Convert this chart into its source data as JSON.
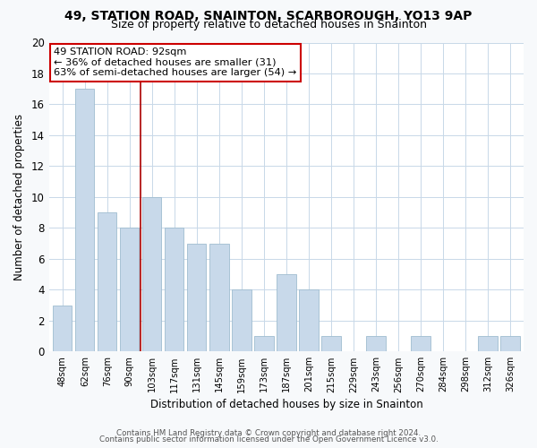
{
  "title": "49, STATION ROAD, SNAINTON, SCARBOROUGH, YO13 9AP",
  "subtitle": "Size of property relative to detached houses in Snainton",
  "xlabel": "Distribution of detached houses by size in Snainton",
  "ylabel": "Number of detached properties",
  "bar_labels": [
    "48sqm",
    "62sqm",
    "76sqm",
    "90sqm",
    "103sqm",
    "117sqm",
    "131sqm",
    "145sqm",
    "159sqm",
    "173sqm",
    "187sqm",
    "201sqm",
    "215sqm",
    "229sqm",
    "243sqm",
    "256sqm",
    "270sqm",
    "284sqm",
    "298sqm",
    "312sqm",
    "326sqm"
  ],
  "bar_values": [
    3,
    17,
    9,
    8,
    10,
    8,
    7,
    7,
    4,
    1,
    5,
    4,
    1,
    0,
    1,
    0,
    1,
    0,
    0,
    1,
    1
  ],
  "bar_color": "#c8d9ea",
  "bar_edge_color": "#a0bdd0",
  "red_line_x": 3.5,
  "ylim": [
    0,
    20
  ],
  "yticks": [
    0,
    2,
    4,
    6,
    8,
    10,
    12,
    14,
    16,
    18,
    20
  ],
  "annotation_title": "49 STATION ROAD: 92sqm",
  "annotation_line1": "← 36% of detached houses are smaller (31)",
  "annotation_line2": "63% of semi-detached houses are larger (54) →",
  "footer1": "Contains HM Land Registry data © Crown copyright and database right 2024.",
  "footer2": "Contains public sector information licensed under the Open Government Licence v3.0.",
  "bg_color": "#f7f9fb",
  "plot_bg_color": "#ffffff",
  "grid_color": "#c8d8e8",
  "annotation_box_color": "#ffffff",
  "annotation_box_edge": "#cc0000",
  "red_line_color": "#aa0000",
  "title_fontsize": 10,
  "subtitle_fontsize": 9
}
